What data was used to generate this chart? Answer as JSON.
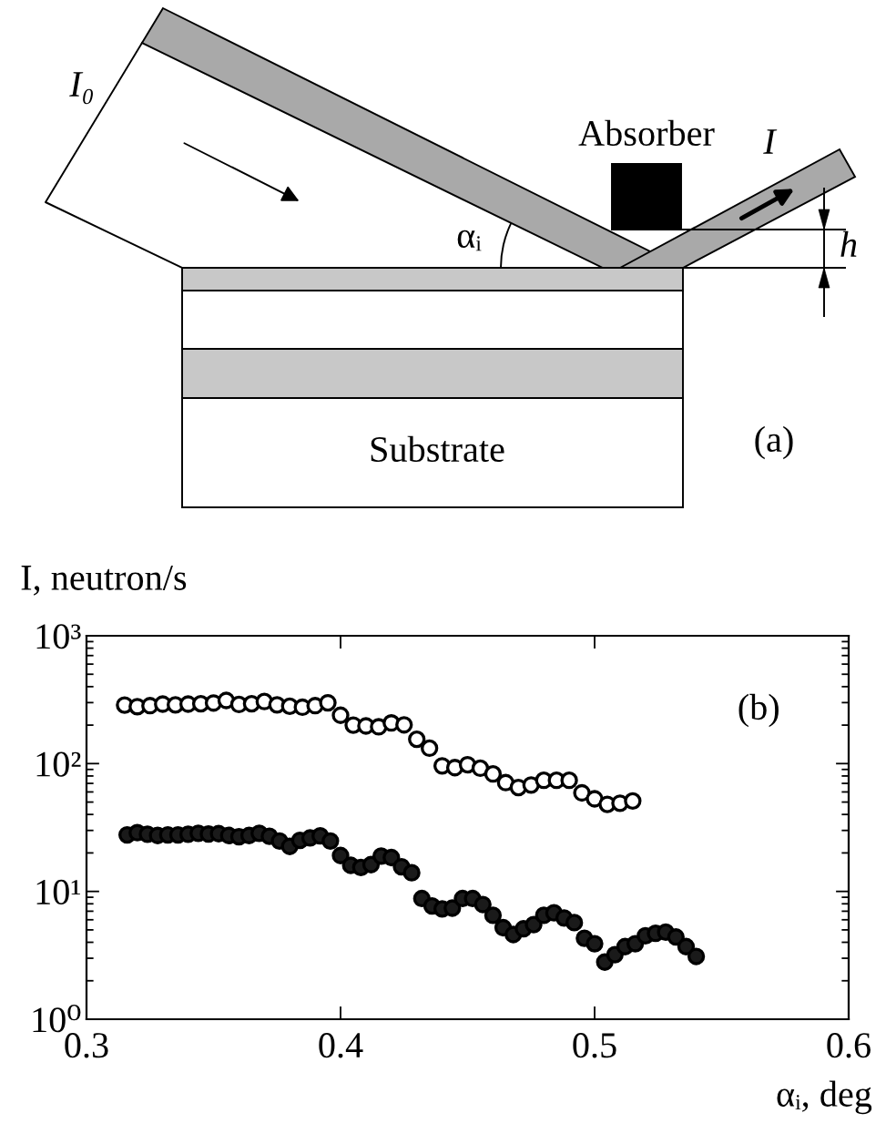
{
  "chart_data": [
    {
      "type": "other",
      "annotations": [
        "I₀",
        "Absorber",
        "I",
        "αᵢ",
        "h",
        "Substrate",
        "(a)"
      ]
    },
    {
      "type": "scatter",
      "ylabel": "I, neutron/s",
      "xlabel": "αᵢ, deg",
      "log": "y",
      "xlim": [
        0.3,
        0.6
      ],
      "xticks": [
        0.3,
        0.4,
        0.5,
        0.6
      ],
      "ylim": [
        1,
        1000
      ],
      "yticks": [
        {
          "value": 1,
          "label": "10⁰"
        },
        {
          "value": 10,
          "label": "10¹"
        },
        {
          "value": 100,
          "label": "10²"
        },
        {
          "value": 1000,
          "label": "10³"
        }
      ],
      "marker": "circle",
      "annotations": [
        "(b)"
      ],
      "series": [
        {
          "color": "#ffffff",
          "x": [
            0.315,
            0.32,
            0.325,
            0.33,
            0.335,
            0.34,
            0.345,
            0.35,
            0.355,
            0.36,
            0.365,
            0.37,
            0.375,
            0.38,
            0.385,
            0.39,
            0.395,
            0.4,
            0.405,
            0.41,
            0.415,
            0.42,
            0.425,
            0.43,
            0.435,
            0.44,
            0.445,
            0.45,
            0.455,
            0.46,
            0.465,
            0.47,
            0.475,
            0.48,
            0.485,
            0.49,
            0.495,
            0.5,
            0.505,
            0.51,
            0.515
          ],
          "values": [
            287,
            279,
            284,
            292,
            288,
            292,
            294,
            298,
            312,
            290,
            294,
            306,
            288,
            281,
            276,
            284,
            299,
            239,
            200,
            197,
            194,
            208,
            201,
            155,
            132,
            96,
            93,
            98,
            92,
            83,
            71,
            65,
            68,
            74,
            74,
            74,
            59,
            53,
            48,
            49,
            51
          ]
        },
        {
          "color": "#1a1a1a",
          "x": [
            0.316,
            0.32,
            0.324,
            0.328,
            0.332,
            0.336,
            0.34,
            0.344,
            0.348,
            0.352,
            0.356,
            0.36,
            0.364,
            0.368,
            0.372,
            0.376,
            0.38,
            0.384,
            0.388,
            0.392,
            0.396,
            0.4,
            0.404,
            0.408,
            0.412,
            0.416,
            0.42,
            0.424,
            0.428,
            0.432,
            0.436,
            0.44,
            0.444,
            0.448,
            0.452,
            0.456,
            0.46,
            0.464,
            0.468,
            0.472,
            0.476,
            0.48,
            0.484,
            0.488,
            0.492,
            0.496,
            0.5,
            0.504,
            0.508,
            0.512,
            0.516,
            0.52,
            0.524,
            0.528,
            0.532,
            0.536,
            0.54
          ],
          "values": [
            27.7,
            28.8,
            28.0,
            27.4,
            27.7,
            27.7,
            28.0,
            28.5,
            28.1,
            28.3,
            27.4,
            26.8,
            27.4,
            28.5,
            27.0,
            24.8,
            22.5,
            25.1,
            26.2,
            27.2,
            24.8,
            19.1,
            16.0,
            15.4,
            16.2,
            18.9,
            18.4,
            15.6,
            14.0,
            8.8,
            7.7,
            7.3,
            7.4,
            8.8,
            8.8,
            7.9,
            6.5,
            5.2,
            4.6,
            5.1,
            5.5,
            6.5,
            6.8,
            6.2,
            5.7,
            4.3,
            3.9,
            2.8,
            3.2,
            3.7,
            3.9,
            4.5,
            4.7,
            4.8,
            4.4,
            3.7,
            3.1
          ]
        }
      ]
    }
  ]
}
